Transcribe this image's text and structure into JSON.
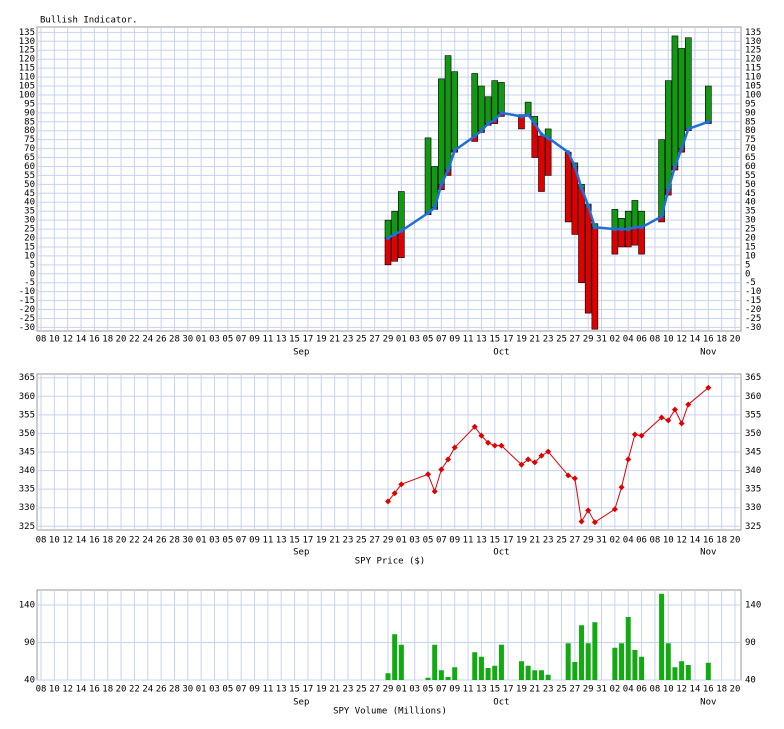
{
  "chart_data": [
    {
      "type": "bullish",
      "title": "Bullish Indicator.",
      "xlim": [
        "Aug 8",
        "Nov 20"
      ],
      "xticks": [
        {
          "value": "Aug 8",
          "label": "08"
        },
        {
          "value": "Aug 10",
          "label": "10"
        },
        {
          "value": "Aug 12",
          "label": "12"
        },
        {
          "value": "Aug 14",
          "label": "14"
        },
        {
          "value": "Aug 16",
          "label": "16"
        },
        {
          "value": "Aug 18",
          "label": "18"
        },
        {
          "value": "Aug 20",
          "label": "20"
        },
        {
          "value": "Aug 22",
          "label": "22"
        },
        {
          "value": "Aug 24",
          "label": "24"
        },
        {
          "value": "Aug 26",
          "label": "26"
        },
        {
          "value": "Aug 28",
          "label": "28"
        },
        {
          "value": "Aug 30",
          "label": "30"
        },
        {
          "value": "Sep 1",
          "label": "01"
        },
        {
          "value": "Sep 3",
          "label": "03"
        },
        {
          "value": "Sep 5",
          "label": "05"
        },
        {
          "value": "Sep 7",
          "label": "07"
        },
        {
          "value": "Sep 9",
          "label": "09"
        },
        {
          "value": "Sep 11",
          "label": "11"
        },
        {
          "value": "Sep 13",
          "label": "13"
        },
        {
          "value": "Sep 15",
          "label": "15"
        },
        {
          "value": "Sep 17",
          "label": "17"
        },
        {
          "value": "Sep 19",
          "label": "19"
        },
        {
          "value": "Sep 21",
          "label": "21"
        },
        {
          "value": "Sep 23",
          "label": "23"
        },
        {
          "value": "Sep 25",
          "label": "25"
        },
        {
          "value": "Sep 27",
          "label": "27"
        },
        {
          "value": "Sep 29",
          "label": "29"
        },
        {
          "value": "Oct 1",
          "label": "01"
        },
        {
          "value": "Oct 3",
          "label": "03"
        },
        {
          "value": "Oct 5",
          "label": "05"
        },
        {
          "value": "Oct 7",
          "label": "07"
        },
        {
          "value": "Oct 9",
          "label": "09"
        },
        {
          "value": "Oct 11",
          "label": "11"
        },
        {
          "value": "Oct 13",
          "label": "13"
        },
        {
          "value": "Oct 15",
          "label": "15"
        },
        {
          "value": "Oct 17",
          "label": "17"
        },
        {
          "value": "Oct 19",
          "label": "19"
        },
        {
          "value": "Oct 21",
          "label": "21"
        },
        {
          "value": "Oct 23",
          "label": "23"
        },
        {
          "value": "Oct 25",
          "label": "25"
        },
        {
          "value": "Oct 27",
          "label": "27"
        },
        {
          "value": "Oct 29",
          "label": "29"
        },
        {
          "value": "Oct 31",
          "label": "31"
        },
        {
          "value": "Nov 2",
          "label": "02"
        },
        {
          "value": "Nov 4",
          "label": "04"
        },
        {
          "value": "Nov 6",
          "label": "06"
        },
        {
          "value": "Nov 8",
          "label": "08"
        },
        {
          "value": "Nov 10",
          "label": "10"
        },
        {
          "value": "Nov 12",
          "label": "12"
        },
        {
          "value": "Nov 14",
          "label": "14"
        },
        {
          "value": "Nov 16",
          "label": "16"
        },
        {
          "value": "Nov 18",
          "label": "18"
        },
        {
          "value": "Nov 20",
          "label": "20"
        }
      ],
      "month_labels": [
        {
          "value": "Sep 16",
          "label": "Sep"
        },
        {
          "value": "Oct 16",
          "label": "Oct"
        },
        {
          "value": "Nov 16",
          "label": "Nov"
        }
      ],
      "x": [
        "Sep 29",
        "Sep 30",
        "Oct 1",
        "Oct 5",
        "Oct 6",
        "Oct 7",
        "Oct 8",
        "Oct 9",
        "Oct 12",
        "Oct 13",
        "Oct 14",
        "Oct 15",
        "Oct 16",
        "Oct 19",
        "Oct 20",
        "Oct 21",
        "Oct 22",
        "Oct 23",
        "Oct 26",
        "Oct 27",
        "Oct 28",
        "Oct 29",
        "Oct 30",
        "Nov 2",
        "Nov 3",
        "Nov 4",
        "Nov 5",
        "Nov 6",
        "Nov 9",
        "Nov 10",
        "Nov 11",
        "Nov 12",
        "Nov 13",
        "Nov 16"
      ],
      "highs": [
        30,
        35,
        46,
        76,
        60,
        109,
        122,
        113,
        112,
        105,
        99,
        108,
        107,
        89,
        96,
        88,
        77,
        81,
        68,
        62,
        50,
        39,
        28,
        36,
        31,
        35,
        41,
        35,
        75,
        108,
        133,
        126,
        132,
        105
      ],
      "lows": [
        5,
        7,
        9,
        33,
        36,
        47,
        55,
        68,
        74,
        79,
        83,
        84,
        88,
        81,
        88,
        65,
        46,
        55,
        29,
        22,
        -5,
        -22,
        -31,
        11,
        15,
        15,
        16,
        11,
        29,
        44,
        58,
        68,
        80,
        84
      ],
      "values": [
        20,
        22,
        24,
        34,
        37,
        50,
        58,
        69,
        77,
        80,
        84,
        86,
        90,
        88,
        89,
        84,
        78,
        76,
        68,
        60,
        48,
        38,
        26,
        25,
        25,
        25,
        26,
        26,
        32,
        47,
        60,
        70,
        81,
        85
      ],
      "up_color": "#119911",
      "down_color": "#e00000",
      "line_color": "#1f6fd6",
      "ylim": [
        -32,
        138
      ],
      "yticks": [
        -30,
        -25,
        -20,
        -15,
        -10,
        -5,
        0,
        5,
        10,
        15,
        20,
        25,
        30,
        35,
        40,
        45,
        50,
        55,
        60,
        65,
        70,
        75,
        80,
        85,
        90,
        95,
        100,
        105,
        110,
        115,
        120,
        125,
        130,
        135
      ],
      "grid": true
    },
    {
      "type": "line",
      "xlabel": "SPY Price ($)",
      "xlim": [
        "Aug 8",
        "Nov 20"
      ],
      "x": [
        "Sep 29",
        "Sep 30",
        "Oct 1",
        "Oct 5",
        "Oct 6",
        "Oct 7",
        "Oct 8",
        "Oct 9",
        "Oct 12",
        "Oct 13",
        "Oct 14",
        "Oct 15",
        "Oct 16",
        "Oct 19",
        "Oct 20",
        "Oct 21",
        "Oct 22",
        "Oct 23",
        "Oct 26",
        "Oct 27",
        "Oct 28",
        "Oct 29",
        "Oct 30",
        "Nov 2",
        "Nov 3",
        "Nov 4",
        "Nov 5",
        "Nov 6",
        "Nov 9",
        "Nov 10",
        "Nov 11",
        "Nov 12",
        "Nov 13",
        "Nov 16"
      ],
      "values": [
        331.7,
        333.9,
        336.3,
        339,
        334.4,
        340.3,
        343,
        346.2,
        351.8,
        349.4,
        347.5,
        346.7,
        346.7,
        341.6,
        343,
        342.2,
        344,
        345.1,
        338.7,
        337.9,
        326.3,
        329.3,
        326.1,
        329.6,
        335.5,
        343,
        349.7,
        349.4,
        354.3,
        353.5,
        356.4,
        352.7,
        357.8,
        362.3
      ],
      "color": "#e00000",
      "ylim": [
        324,
        366
      ],
      "yticks": [
        325,
        330,
        335,
        340,
        345,
        350,
        355,
        360,
        365
      ],
      "grid": true
    },
    {
      "type": "bar",
      "xlabel": "SPY Volume (Millions)",
      "xlim": [
        "Aug 8",
        "Nov 20"
      ],
      "x": [
        "Sep 29",
        "Sep 30",
        "Oct 1",
        "Oct 5",
        "Oct 6",
        "Oct 7",
        "Oct 8",
        "Oct 9",
        "Oct 12",
        "Oct 13",
        "Oct 14",
        "Oct 15",
        "Oct 16",
        "Oct 19",
        "Oct 20",
        "Oct 21",
        "Oct 22",
        "Oct 23",
        "Oct 26",
        "Oct 27",
        "Oct 28",
        "Oct 29",
        "Oct 30",
        "Nov 2",
        "Nov 3",
        "Nov 4",
        "Nov 5",
        "Nov 6",
        "Nov 9",
        "Nov 10",
        "Nov 11",
        "Nov 12",
        "Nov 13",
        "Nov 16"
      ],
      "values": [
        49,
        101,
        87,
        43,
        87,
        53,
        44,
        57,
        77,
        71,
        56,
        59,
        87,
        65,
        59,
        53,
        53,
        47,
        89,
        64,
        113,
        89,
        117,
        83,
        89,
        124,
        80,
        71,
        155,
        89,
        57,
        65,
        60,
        63
      ],
      "color": "#11aa11",
      "ylim": [
        40,
        160
      ],
      "yticks": [
        40,
        90,
        140
      ],
      "grid": true
    }
  ]
}
